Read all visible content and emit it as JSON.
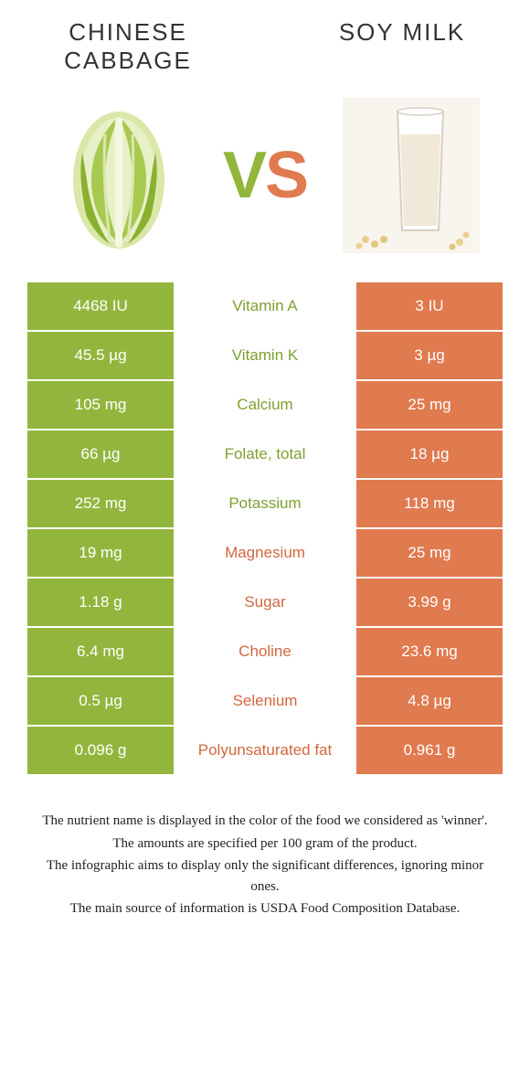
{
  "colors": {
    "green": "#92b63d",
    "orange": "#e07a4f",
    "green_text": "#7fa032",
    "orange_text": "#d3673f",
    "white": "#ffffff"
  },
  "header": {
    "left_title": "Chinese cabbage",
    "right_title": "Soy milk",
    "vs_v": "V",
    "vs_s": "S"
  },
  "rows": [
    {
      "left": "4468 IU",
      "nutrient": "Vitamin A",
      "right": "3 IU",
      "winner": "left"
    },
    {
      "left": "45.5 µg",
      "nutrient": "Vitamin K",
      "right": "3 µg",
      "winner": "left"
    },
    {
      "left": "105 mg",
      "nutrient": "Calcium",
      "right": "25 mg",
      "winner": "left"
    },
    {
      "left": "66 µg",
      "nutrient": "Folate, total",
      "right": "18 µg",
      "winner": "left"
    },
    {
      "left": "252 mg",
      "nutrient": "Potassium",
      "right": "118 mg",
      "winner": "left"
    },
    {
      "left": "19 mg",
      "nutrient": "Magnesium",
      "right": "25 mg",
      "winner": "right"
    },
    {
      "left": "1.18 g",
      "nutrient": "Sugar",
      "right": "3.99 g",
      "winner": "right"
    },
    {
      "left": "6.4 mg",
      "nutrient": "Choline",
      "right": "23.6 mg",
      "winner": "right"
    },
    {
      "left": "0.5 µg",
      "nutrient": "Selenium",
      "right": "4.8 µg",
      "winner": "right"
    },
    {
      "left": "0.096 g",
      "nutrient": "Polyunsaturated fat",
      "right": "0.961 g",
      "winner": "right"
    }
  ],
  "footer": {
    "line1": "The nutrient name is displayed in the color of the food we considered as 'winner'.",
    "line2": "The amounts are specified per 100 gram of the product.",
    "line3": "The infographic aims to display only the significant differences, ignoring minor ones.",
    "line4": "The main source of information is USDA Food Composition Database."
  }
}
